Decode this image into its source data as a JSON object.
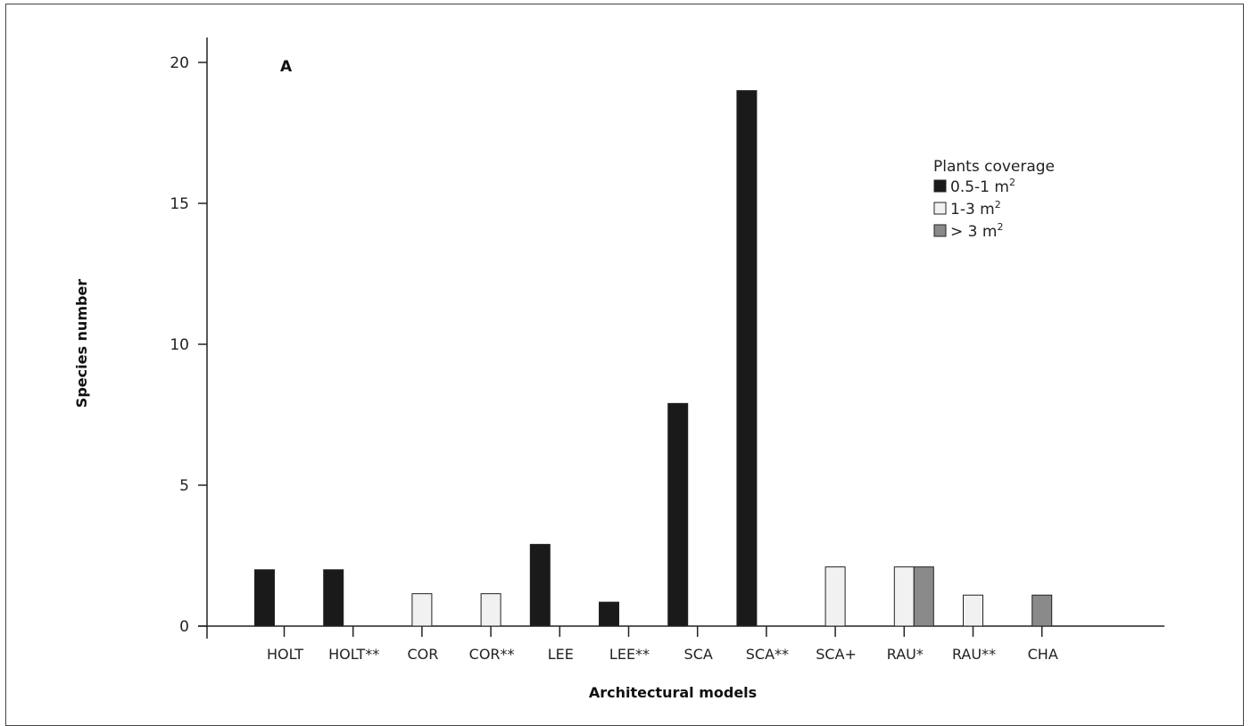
{
  "chart_data": {
    "type": "bar",
    "panel_label": "A",
    "xlabel": "Architectural models",
    "ylabel": "Species number",
    "ylim": [
      0,
      21
    ],
    "yticks": [
      0,
      5,
      10,
      15,
      20
    ],
    "categories": [
      "HOLT",
      "HOLT**",
      "COR",
      "COR**",
      "LEE",
      "LEE**",
      "SCA",
      "SCA**",
      "SCA+",
      "RAU*",
      "RAU**",
      "CHA"
    ],
    "legend": {
      "title": "Plants coverage",
      "position": "top-right"
    },
    "series": [
      {
        "name": "0.5-1 m",
        "unit_sup": "2",
        "color": "#1a1a1a",
        "values": [
          2,
          2,
          0,
          0,
          2.9,
          0.85,
          7.9,
          19,
          0,
          0,
          0,
          0
        ]
      },
      {
        "name": "1-3 m",
        "unit_sup": "2",
        "color": "#f1f1f1",
        "values": [
          0,
          0,
          1.15,
          1.15,
          0,
          0,
          0,
          0,
          2.1,
          2.1,
          1.1,
          0
        ]
      },
      {
        "name": "> 3 m",
        "unit_sup": "2",
        "color": "#8a8a8a",
        "values": [
          0,
          0,
          0,
          0,
          0,
          0,
          0,
          0,
          0,
          2.1,
          0,
          1.1
        ]
      }
    ]
  }
}
